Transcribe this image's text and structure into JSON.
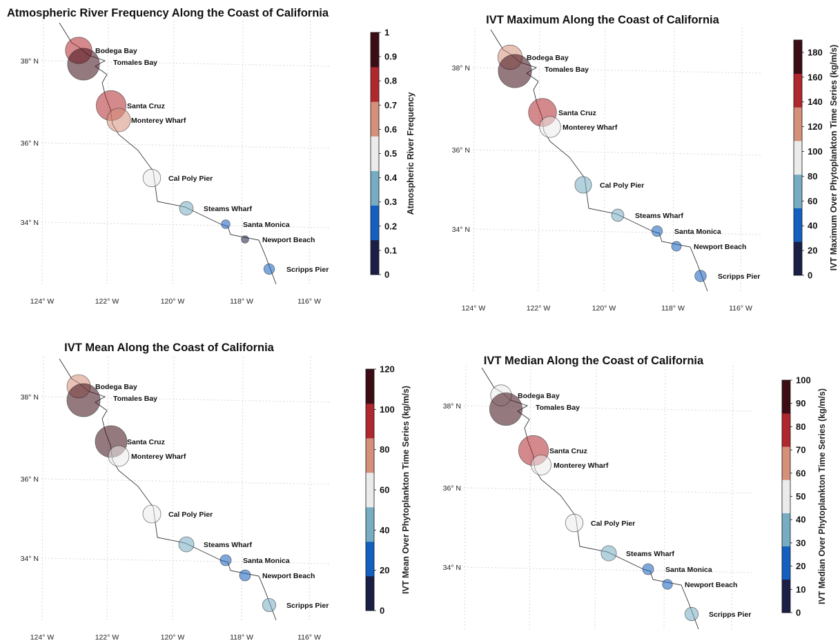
{
  "sites": [
    "Bodega Bay",
    "Tomales Bay",
    "Santa Cruz",
    "Monterey Wharf",
    "Cal Poly Pier",
    "Steams Wharf",
    "Santa Monica",
    "Newport Beach",
    "Scripps Pier"
  ],
  "lat_ticks": [
    "38° N",
    "36° N",
    "34° N"
  ],
  "lon_ticks": [
    "124° W",
    "122° W",
    "120° W",
    "118° W",
    "116° W"
  ],
  "palette": [
    "#1b1f45",
    "#1460c0",
    "#76adc3",
    "#ebebeb",
    "#d5907a",
    "#b0282e",
    "#3d0d16"
  ],
  "panels": [
    {
      "title": "Atmospheric River Frequency Along the Coast of California",
      "colorbar_label": "Atmospheric River Frequency",
      "colorbar_ticks": [
        "0",
        "0.1",
        "0.2",
        "0.3",
        "0.4",
        "0.5",
        "0.6",
        "0.7",
        "0.8",
        "0.9",
        "1"
      ],
      "cmax": 1,
      "values": [
        0.72,
        0.88,
        0.82,
        0.63,
        0.45,
        0.33,
        0.18,
        0.14,
        0.24
      ]
    },
    {
      "title": "IVT Maximum Along the Coast of California",
      "colorbar_label": "IVT Maximum Over Phytoplankton Time Series (kg/m/s)",
      "colorbar_ticks": [
        "0",
        "20",
        "40",
        "60",
        "80",
        "100",
        "120",
        "140",
        "160",
        "180"
      ],
      "cmax": 190,
      "values": [
        125,
        175,
        145,
        105,
        80,
        55,
        45,
        40,
        50
      ]
    },
    {
      "title": "IVT Mean Along the Coast of California",
      "colorbar_label": "IVT Mean Over Phytoplankton Time Series (kg/m/s)",
      "colorbar_ticks": [
        "0",
        "20",
        "40",
        "60",
        "80",
        "100",
        "120"
      ],
      "cmax": 120,
      "values": [
        75,
        110,
        105,
        65,
        55,
        45,
        30,
        30,
        38
      ]
    },
    {
      "title": "IVT Median Along the Coast of California",
      "colorbar_label": "IVT Median Over Phytoplankton Time Series (kg/m/s)",
      "colorbar_ticks": [
        "0",
        "10",
        "20",
        "30",
        "40",
        "50",
        "60",
        "70",
        "80",
        "90",
        "100"
      ],
      "cmax": 100,
      "values": [
        55,
        90,
        82,
        52,
        45,
        38,
        25,
        22,
        32
      ]
    }
  ]
}
